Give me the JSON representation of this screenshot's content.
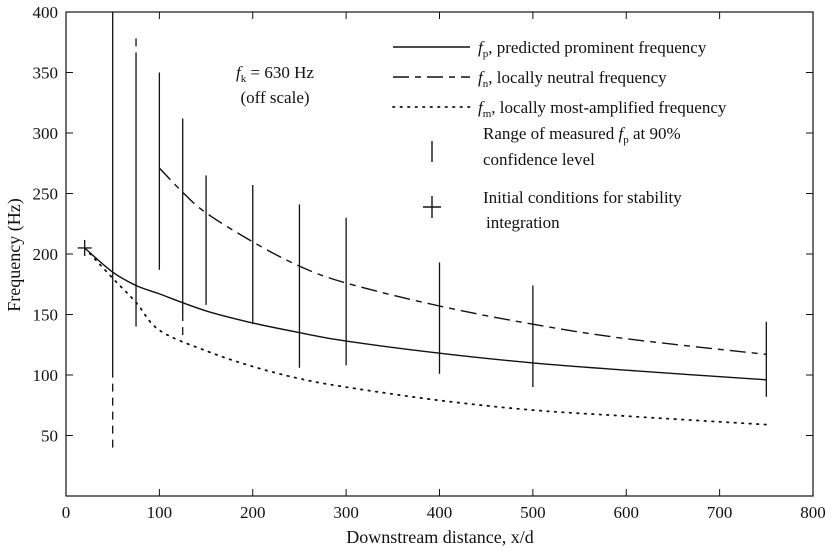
{
  "chart_data": {
    "type": "line",
    "title": "",
    "xlabel": "Downstream distance, x/d",
    "ylabel": "Frequency (Hz)",
    "xlim": [
      0,
      800
    ],
    "ylim": [
      0,
      400
    ],
    "xticks": [
      0,
      100,
      200,
      300,
      400,
      500,
      600,
      700,
      800
    ],
    "yticks": [
      50,
      100,
      150,
      200,
      250,
      300,
      350,
      400
    ],
    "grid": false,
    "legend_position": "top-right",
    "annotation": {
      "line1": "f_k = 630 Hz",
      "line2": "(off scale)"
    },
    "series": [
      {
        "name": "f_p, predicted prominent frequency",
        "style": "solid",
        "x": [
          20,
          50,
          75,
          100,
          150,
          200,
          250,
          300,
          400,
          500,
          600,
          750
        ],
        "y": [
          205,
          185,
          174,
          167,
          153,
          143,
          135,
          128,
          118,
          110,
          104,
          96
        ]
      },
      {
        "name": "f_n, locally neutral frequency",
        "style": "dash",
        "x": [
          100,
          125,
          150,
          200,
          250,
          300,
          400,
          500,
          600,
          750
        ],
        "y": [
          271,
          251,
          234,
          210,
          190,
          176,
          157,
          142,
          130,
          117
        ]
      },
      {
        "name": "f_m, locally most-amplified frequency",
        "style": "dot",
        "x": [
          20,
          50,
          75,
          100,
          150,
          200,
          250,
          300,
          400,
          500,
          600,
          750
        ],
        "y": [
          205,
          180,
          160,
          137,
          120,
          107,
          97,
          90,
          79,
          71,
          66,
          59
        ]
      }
    ],
    "ranges": [
      {
        "x": 50,
        "low": 40,
        "high": 400,
        "dashed_below": 100
      },
      {
        "x": 75,
        "low": 140,
        "high": 380,
        "dashed_above": 360
      },
      {
        "x": 100,
        "low": 187,
        "high": 350
      },
      {
        "x": 125,
        "low": 133,
        "high": 312,
        "dashed_below": 148
      },
      {
        "x": 150,
        "low": 158,
        "high": 265
      },
      {
        "x": 200,
        "low": 142,
        "high": 257
      },
      {
        "x": 250,
        "low": 106,
        "high": 241
      },
      {
        "x": 300,
        "low": 108,
        "high": 230
      },
      {
        "x": 400,
        "low": 101,
        "high": 193
      },
      {
        "x": 500,
        "low": 90,
        "high": 174
      },
      {
        "x": 750,
        "low": 82,
        "high": 144
      }
    ],
    "initial_condition": {
      "x": 20,
      "y": 205
    },
    "legend": {
      "fp": {
        "sym": "f",
        "sub": "p",
        "text": ", predicted prominent frequency"
      },
      "fn": {
        "sym": "f",
        "sub": "n",
        "text": ", locally neutral frequency"
      },
      "fm": {
        "sym": "f",
        "sub": "m",
        "text": ", locally most-amplified frequency"
      },
      "range_line1_a": "Range of measured ",
      "range_sym": "f",
      "range_sub": "p",
      "range_line1_b": " at 90%",
      "range_line2": "confidence level",
      "ic_line1": "Initial conditions for stability",
      "ic_line2": "integration"
    }
  }
}
